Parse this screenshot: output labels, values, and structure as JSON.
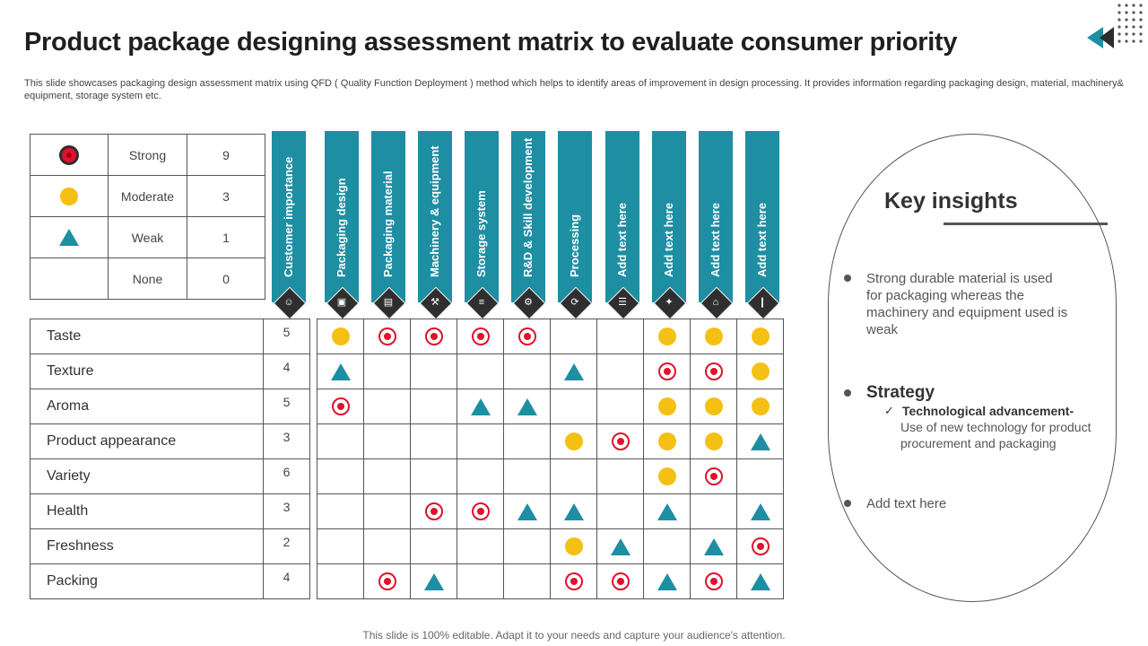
{
  "title": "Product package designing assessment matrix to evaluate consumer priority",
  "subtitle": "This slide showcases packaging design assessment matrix using QFD ( Quality Function Deployment ) method which helps to identify areas of improvement in design processing. It provides information regarding packaging design, material, machinery& equipment, storage system etc.",
  "legend": [
    {
      "symbol": "strong",
      "label": "Strong",
      "value": "9"
    },
    {
      "symbol": "moderate",
      "label": "Moderate",
      "value": "3"
    },
    {
      "symbol": "weak",
      "label": "Weak",
      "value": "1"
    },
    {
      "symbol": "none",
      "label": "None",
      "value": "0"
    }
  ],
  "columns": [
    {
      "label": "Customer importance",
      "icon": "people-icon"
    },
    {
      "label": "Packaging design",
      "icon": "boxes-icon"
    },
    {
      "label": "Packaging material",
      "icon": "box-icon"
    },
    {
      "label": "Machinery & equipment",
      "icon": "machinery-icon"
    },
    {
      "label": "Storage system",
      "icon": "database-icon"
    },
    {
      "label": "R&D & Skill development",
      "icon": "gear-brain-icon"
    },
    {
      "label": "Processing",
      "icon": "process-icon"
    },
    {
      "label": "Add text here",
      "icon": "document-icon"
    },
    {
      "label": "Add text here",
      "icon": "network-icon"
    },
    {
      "label": "Add text here",
      "icon": "factory-icon"
    },
    {
      "label": "Add text here",
      "icon": "bar-chart-icon"
    }
  ],
  "rows": [
    {
      "attribute": "Taste",
      "importance": "5",
      "cells": [
        "moderate",
        "strong",
        "strong",
        "strong",
        "strong",
        "",
        "",
        "moderate",
        "moderate",
        "moderate"
      ]
    },
    {
      "attribute": "Texture",
      "importance": "4",
      "cells": [
        "weak",
        "",
        "",
        "",
        "",
        "weak",
        "",
        "strong",
        "strong",
        "moderate"
      ]
    },
    {
      "attribute": "Aroma",
      "importance": "5",
      "cells": [
        "strong",
        "",
        "",
        "weak",
        "weak",
        "",
        "",
        "moderate",
        "moderate",
        "moderate"
      ]
    },
    {
      "attribute": "Product appearance",
      "importance": "3",
      "cells": [
        "",
        "",
        "",
        "",
        "",
        "moderate",
        "strong",
        "moderate",
        "moderate",
        "weak"
      ]
    },
    {
      "attribute": "Variety",
      "importance": "6",
      "cells": [
        "",
        "",
        "",
        "",
        "",
        "",
        "",
        "moderate",
        "strong",
        ""
      ]
    },
    {
      "attribute": "Health",
      "importance": "3",
      "cells": [
        "",
        "",
        "strong",
        "strong",
        "weak",
        "weak",
        "",
        "weak",
        "",
        "weak"
      ]
    },
    {
      "attribute": "Freshness",
      "importance": "2",
      "cells": [
        "",
        "",
        "",
        "",
        "",
        "moderate",
        "weak",
        "",
        "weak",
        "strong"
      ]
    },
    {
      "attribute": "Packing",
      "importance": "4",
      "cells": [
        "",
        "strong",
        "weak",
        "",
        "",
        "strong",
        "strong",
        "weak",
        "strong",
        "weak"
      ]
    }
  ],
  "insights": {
    "title": "Key insights",
    "point1": "Strong durable material is used for packaging whereas the machinery and equipment used is weak",
    "strategy_title": "Strategy",
    "strategy_item_title": "Technological advancement-",
    "strategy_item_desc": "Use of new technology for product procurement and packaging",
    "point3": "Add text here"
  },
  "colors": {
    "teal": "#1e8ea3",
    "strong": "#e0112b",
    "moderate": "#f4c013",
    "weak": "#1e8ea3"
  },
  "footer": "This slide is 100% editable. Adapt it to your needs and capture your audience's attention."
}
